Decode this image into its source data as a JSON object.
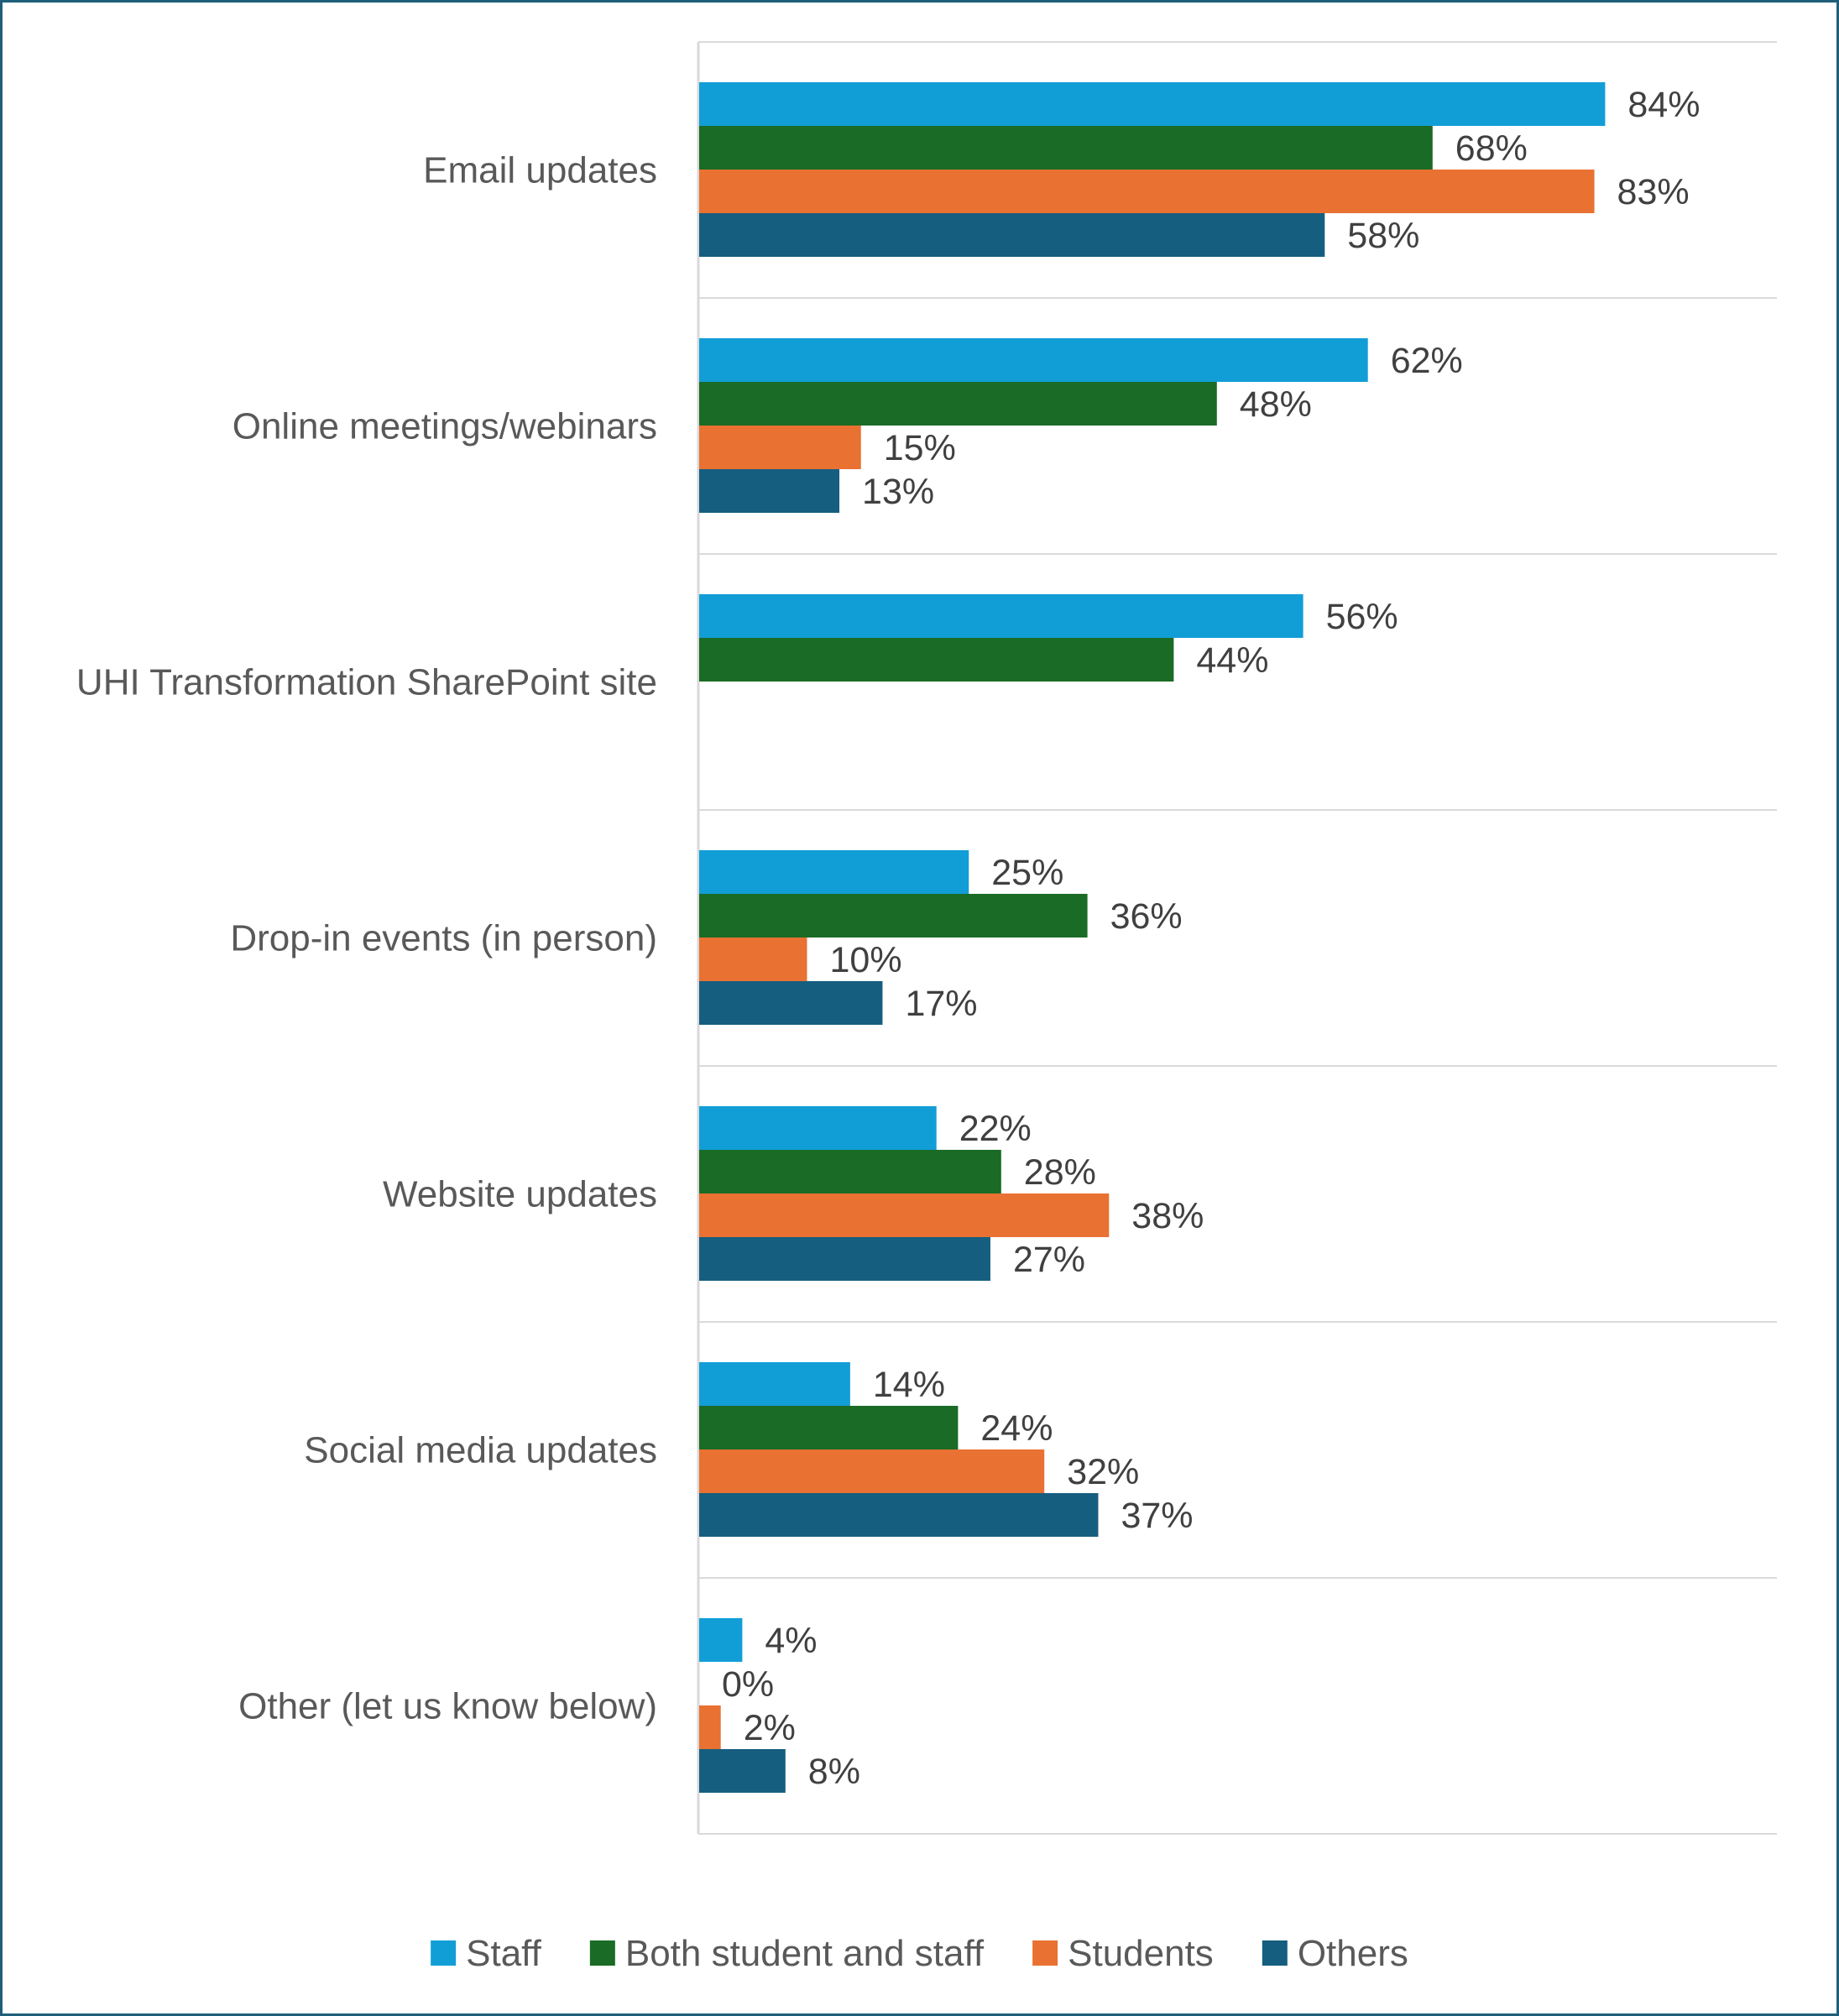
{
  "chart_data": {
    "type": "bar",
    "orientation": "horizontal",
    "categories": [
      "Email updates",
      "Online meetings/webinars",
      "UHI Transformation SharePoint site",
      "Drop-in events (in person)",
      "Website updates",
      "Social media updates",
      "Other (let us know below)"
    ],
    "series": [
      {
        "name": "Staff",
        "color": "#119ed7",
        "values": [
          84,
          62,
          56,
          25,
          22,
          14,
          4
        ]
      },
      {
        "name": "Both student and staff",
        "color": "#1a6b25",
        "values": [
          68,
          48,
          44,
          36,
          28,
          24,
          0
        ]
      },
      {
        "name": "Students",
        "color": "#e97132",
        "values": [
          83,
          15,
          null,
          10,
          38,
          32,
          2
        ]
      },
      {
        "name": "Others",
        "color": "#155e80",
        "values": [
          58,
          13,
          null,
          17,
          27,
          37,
          8
        ]
      }
    ],
    "value_suffix": "%",
    "xlim": [
      0,
      100
    ],
    "grid": "horizontal separators between categories",
    "legend_position": "bottom"
  }
}
